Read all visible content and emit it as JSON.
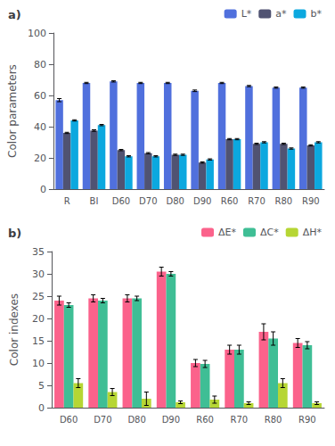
{
  "chart_data": [
    {
      "type": "bar",
      "title": "a)",
      "ylabel": "Color parameters",
      "categories": [
        "R",
        "BI",
        "D60",
        "D70",
        "D80",
        "D90",
        "R60",
        "R70",
        "R80",
        "R90"
      ],
      "series": [
        {
          "name": "L*",
          "values": [
            57,
            68,
            69,
            68,
            68,
            63,
            68,
            66,
            65,
            65
          ],
          "errors": [
            1.0,
            0.4,
            0.4,
            0.4,
            0.4,
            0.5,
            0.4,
            0.4,
            0.4,
            0.4
          ]
        },
        {
          "name": "a*",
          "values": [
            36,
            37.5,
            25,
            23,
            22,
            17,
            32,
            29,
            29,
            28
          ],
          "errors": [
            0.4,
            0.5,
            0.4,
            0.4,
            0.4,
            0.4,
            0.4,
            0.4,
            0.4,
            0.4
          ]
        },
        {
          "name": "b*",
          "values": [
            44,
            41,
            21,
            21,
            22,
            19,
            32,
            30,
            26,
            30
          ],
          "errors": [
            0.4,
            0.4,
            0.4,
            0.4,
            0.4,
            0.4,
            0.4,
            0.4,
            0.4,
            0.4
          ]
        }
      ],
      "ylim": [
        0,
        100
      ],
      "yticks": [
        0,
        20,
        40,
        60,
        80,
        100
      ],
      "legend": "upper right",
      "grid": false
    },
    {
      "type": "bar",
      "title": "b)",
      "ylabel": "Color indexes",
      "categories": [
        "D60",
        "D70",
        "D80",
        "D90",
        "R60",
        "R70",
        "R80",
        "R90"
      ],
      "series": [
        {
          "name": "ΔE*",
          "values": [
            24,
            24.5,
            24.5,
            30.5,
            10,
            13,
            17,
            14.5
          ],
          "errors": [
            1.0,
            0.8,
            0.8,
            1.0,
            0.8,
            1.0,
            1.8,
            1.0
          ]
        },
        {
          "name": "ΔC*",
          "values": [
            23,
            24,
            24.5,
            30,
            9.8,
            13,
            15.5,
            14
          ],
          "errors": [
            0.5,
            0.5,
            0.5,
            0.5,
            0.8,
            1.0,
            1.5,
            0.8
          ]
        },
        {
          "name": "ΔH*",
          "values": [
            5.5,
            3.5,
            2.0,
            1.2,
            1.8,
            1.0,
            5.5,
            1.0
          ],
          "errors": [
            1.0,
            0.8,
            1.5,
            0.3,
            0.8,
            0.3,
            1.0,
            0.3
          ]
        }
      ],
      "ylim": [
        0,
        35
      ],
      "yticks": [
        0,
        5,
        10,
        15,
        20,
        25,
        30,
        35
      ],
      "legend": "upper right",
      "grid": false
    }
  ]
}
